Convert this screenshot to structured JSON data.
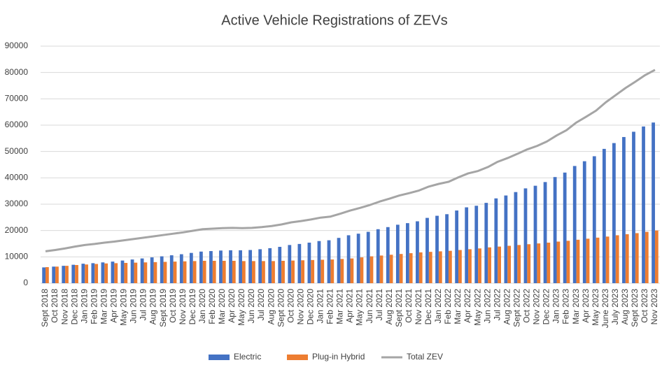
{
  "chart_data": {
    "type": "bar-line",
    "title": "Active Vehicle Registrations of ZEVs",
    "categories": [
      "Sept 2018",
      "Oct 2018",
      "Nov 2018",
      "Dec 2018",
      "Jan 2019",
      "Feb 2019",
      "Mar 2019",
      "Apr 2019",
      "May 2019",
      "Jun 2019",
      "Jul 2019",
      "Aug 2019",
      "Sept 2019",
      "Oct 2019",
      "Nov 2019",
      "Dec 2019",
      "Jan 2020",
      "Feb 2020",
      "Mar 2020",
      "Apr 2020",
      "May 2020",
      "Jun 2020",
      "Jul 2020",
      "Aug 2020",
      "Sept 2020",
      "Oct 2020",
      "Nov 2020",
      "Dec 2020",
      "Jan 2021",
      "Feb 2021",
      "Mar 2021",
      "Apr 2021",
      "May 2021",
      "Jun 2021",
      "Jul 2021",
      "Aug 2021",
      "Sept 2021",
      "Oct 2021",
      "Nov 2021",
      "Dec 2021",
      "Jan 2022",
      "Feb 2022",
      "Mar 2022",
      "Apr 2022",
      "May 2022",
      "Jun 2022",
      "Jul 2022",
      "Aug 2022",
      "Sept 2022",
      "Oct 2022",
      "Nov 2022",
      "Dec 2022",
      "Jan 2023",
      "Feb 2023",
      "Mar 2023",
      "Apr 2023",
      "May 2023",
      "June 2023",
      "July 2023",
      "Aug 2023",
      "Sept 2023",
      "Oct 2023",
      "Nov 2023"
    ],
    "series": [
      {
        "name": "Electric",
        "color": "#4472c4",
        "kind": "bar",
        "values": [
          6000,
          6300,
          6600,
          7000,
          7400,
          7600,
          7900,
          8200,
          8600,
          9000,
          9400,
          9800,
          10200,
          10600,
          11000,
          11500,
          12000,
          12200,
          12400,
          12500,
          12500,
          12600,
          12900,
          13300,
          13800,
          14500,
          14900,
          15400,
          16000,
          16300,
          17200,
          18200,
          18800,
          19500,
          20500,
          21300,
          22200,
          22800,
          23500,
          24800,
          25600,
          26200,
          27600,
          28800,
          29400,
          30500,
          32200,
          33300,
          34600,
          36000,
          37000,
          38400,
          40300,
          42000,
          44500,
          46300,
          48200,
          51000,
          53200,
          55500,
          57500,
          59500,
          61000
        ]
      },
      {
        "name": "Plug-in Hybrid",
        "color": "#ed7d31",
        "kind": "bar",
        "values": [
          6100,
          6300,
          6600,
          6900,
          7100,
          7300,
          7500,
          7600,
          7700,
          7800,
          7900,
          8000,
          8100,
          8200,
          8300,
          8400,
          8500,
          8500,
          8500,
          8500,
          8400,
          8400,
          8400,
          8400,
          8500,
          8600,
          8700,
          8800,
          8900,
          9000,
          9200,
          9400,
          9800,
          10200,
          10500,
          10800,
          11100,
          11400,
          11700,
          11900,
          12100,
          12300,
          12600,
          12900,
          13200,
          13600,
          13900,
          14200,
          14500,
          14800,
          15100,
          15400,
          15800,
          16100,
          16500,
          16900,
          17300,
          17700,
          18200,
          18600,
          19000,
          19500,
          20000
        ]
      },
      {
        "name": "Total ZEV",
        "color": "#a5a5a5",
        "kind": "line",
        "values": [
          12100,
          12600,
          13200,
          13900,
          14500,
          14900,
          15400,
          15800,
          16300,
          16800,
          17300,
          17800,
          18300,
          18800,
          19300,
          19900,
          20500,
          20700,
          20900,
          21000,
          20900,
          21000,
          21300,
          21700,
          22300,
          23100,
          23600,
          24200,
          24900,
          25300,
          26400,
          27600,
          28600,
          29700,
          31000,
          32100,
          33300,
          34200,
          35200,
          36700,
          37700,
          38500,
          40200,
          41700,
          42600,
          44100,
          46100,
          47500,
          49100,
          50800,
          52100,
          53800,
          56100,
          58100,
          61000,
          63200,
          65500,
          68700,
          71400,
          74100,
          76500,
          79000,
          81000
        ]
      }
    ],
    "ylim": [
      0,
      90000
    ],
    "yticks": [
      0,
      10000,
      20000,
      30000,
      40000,
      50000,
      60000,
      70000,
      80000,
      90000
    ],
    "grid": true,
    "legend": "bottom"
  }
}
